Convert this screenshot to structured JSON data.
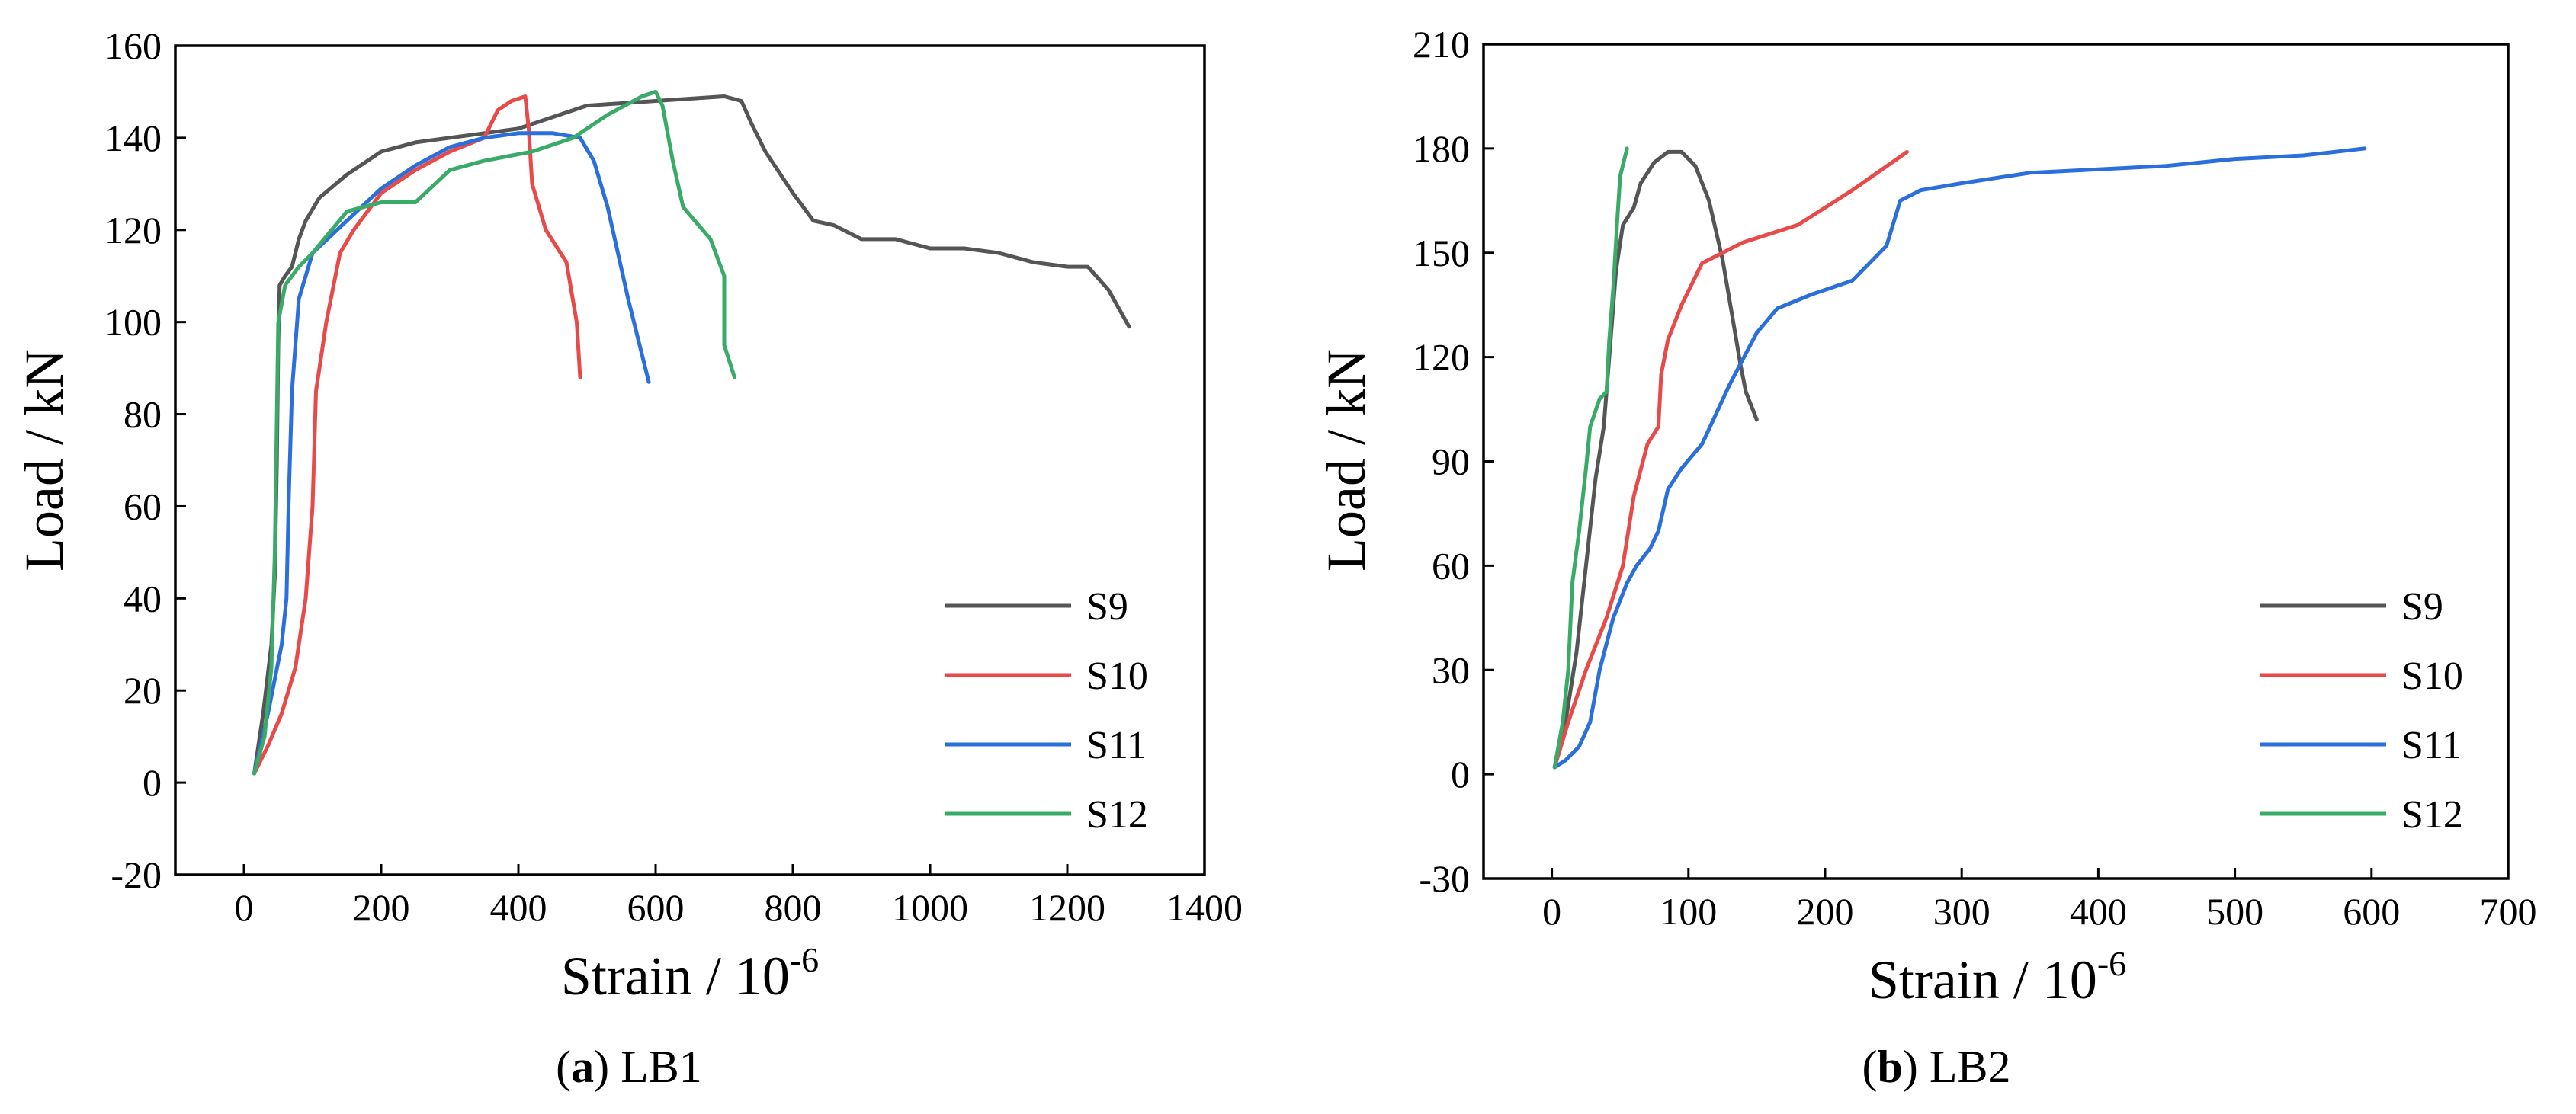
{
  "chart_data": [
    {
      "type": "line",
      "panel": "a",
      "caption_letter": "a",
      "caption_text": "LB1",
      "xlabel": "Strain / 10",
      "xlabel_sup": "-6",
      "ylabel": "Load / kN",
      "xlim": [
        -100,
        1400
      ],
      "ylim": [
        -20,
        160
      ],
      "xticks": [
        0,
        200,
        400,
        600,
        800,
        1000,
        1200,
        1400
      ],
      "yticks": [
        -20,
        0,
        20,
        40,
        60,
        80,
        100,
        120,
        140,
        160
      ],
      "legend_position": "bottom-right",
      "series": [
        {
          "name": "S9",
          "color": "#555555",
          "points": [
            [
              15,
              2
            ],
            [
              28,
              15
            ],
            [
              40,
              30
            ],
            [
              45,
              45
            ],
            [
              48,
              70
            ],
            [
              50,
              95
            ],
            [
              52,
              108
            ],
            [
              60,
              110
            ],
            [
              70,
              112
            ],
            [
              80,
              118
            ],
            [
              90,
              122
            ],
            [
              110,
              127
            ],
            [
              150,
              132
            ],
            [
              200,
              137
            ],
            [
              250,
              139
            ],
            [
              300,
              140
            ],
            [
              400,
              142
            ],
            [
              500,
              147
            ],
            [
              600,
              148
            ],
            [
              700,
              149
            ],
            [
              725,
              148
            ],
            [
              740,
              143
            ],
            [
              760,
              137
            ],
            [
              800,
              128
            ],
            [
              830,
              122
            ],
            [
              860,
              121
            ],
            [
              900,
              118
            ],
            [
              950,
              118
            ],
            [
              1000,
              116
            ],
            [
              1050,
              116
            ],
            [
              1100,
              115
            ],
            [
              1150,
              113
            ],
            [
              1200,
              112
            ],
            [
              1230,
              112
            ],
            [
              1260,
              107
            ],
            [
              1290,
              99
            ]
          ]
        },
        {
          "name": "S10",
          "color": "#e84a4a",
          "points": [
            [
              15,
              2
            ],
            [
              35,
              8
            ],
            [
              55,
              15
            ],
            [
              75,
              25
            ],
            [
              90,
              40
            ],
            [
              100,
              60
            ],
            [
              105,
              85
            ],
            [
              120,
              100
            ],
            [
              140,
              115
            ],
            [
              160,
              120
            ],
            [
              200,
              128
            ],
            [
              250,
              133
            ],
            [
              300,
              137
            ],
            [
              350,
              140
            ],
            [
              370,
              146
            ],
            [
              390,
              148
            ],
            [
              410,
              149
            ],
            [
              415,
              142
            ],
            [
              420,
              130
            ],
            [
              440,
              120
            ],
            [
              470,
              113
            ],
            [
              485,
              100
            ],
            [
              490,
              88
            ]
          ]
        },
        {
          "name": "S11",
          "color": "#2a6fdb",
          "points": [
            [
              15,
              2
            ],
            [
              35,
              15
            ],
            [
              55,
              30
            ],
            [
              62,
              40
            ],
            [
              65,
              60
            ],
            [
              70,
              85
            ],
            [
              80,
              105
            ],
            [
              100,
              115
            ],
            [
              150,
              122
            ],
            [
              200,
              129
            ],
            [
              250,
              134
            ],
            [
              300,
              138
            ],
            [
              350,
              140
            ],
            [
              400,
              141
            ],
            [
              450,
              141
            ],
            [
              490,
              140
            ],
            [
              510,
              135
            ],
            [
              530,
              125
            ],
            [
              560,
              105
            ],
            [
              590,
              87
            ]
          ]
        },
        {
          "name": "S12",
          "color": "#3aaa68",
          "points": [
            [
              15,
              2
            ],
            [
              30,
              10
            ],
            [
              40,
              25
            ],
            [
              45,
              50
            ],
            [
              48,
              80
            ],
            [
              50,
              100
            ],
            [
              60,
              108
            ],
            [
              80,
              112
            ],
            [
              100,
              115
            ],
            [
              150,
              124
            ],
            [
              200,
              126
            ],
            [
              250,
              126
            ],
            [
              300,
              133
            ],
            [
              350,
              135
            ],
            [
              420,
              137
            ],
            [
              480,
              140
            ],
            [
              530,
              145
            ],
            [
              580,
              149
            ],
            [
              600,
              150
            ],
            [
              610,
              147
            ],
            [
              625,
              135
            ],
            [
              640,
              125
            ],
            [
              680,
              118
            ],
            [
              700,
              110
            ],
            [
              700,
              95
            ],
            [
              715,
              88
            ]
          ]
        }
      ]
    },
    {
      "type": "line",
      "panel": "b",
      "caption_letter": "b",
      "caption_text": "LB2",
      "xlabel": "Strain / 10",
      "xlabel_sup": "-6",
      "ylabel": "Load / kN",
      "xlim": [
        -50,
        700
      ],
      "ylim": [
        -30,
        210
      ],
      "xticks": [
        0,
        100,
        200,
        300,
        400,
        500,
        600,
        700
      ],
      "yticks": [
        -30,
        0,
        30,
        60,
        90,
        120,
        150,
        180,
        210
      ],
      "legend_position": "bottom-right",
      "series": [
        {
          "name": "S9",
          "color": "#555555",
          "points": [
            [
              2,
              2
            ],
            [
              10,
              15
            ],
            [
              18,
              35
            ],
            [
              25,
              60
            ],
            [
              32,
              85
            ],
            [
              38,
              100
            ],
            [
              42,
              120
            ],
            [
              47,
              145
            ],
            [
              52,
              158
            ],
            [
              60,
              163
            ],
            [
              65,
              170
            ],
            [
              75,
              176
            ],
            [
              85,
              179
            ],
            [
              95,
              179
            ],
            [
              105,
              175
            ],
            [
              115,
              165
            ],
            [
              125,
              148
            ],
            [
              132,
              132
            ],
            [
              138,
              118
            ],
            [
              142,
              110
            ],
            [
              150,
              102
            ]
          ]
        },
        {
          "name": "S10",
          "color": "#e84a4a",
          "points": [
            [
              2,
              2
            ],
            [
              12,
              15
            ],
            [
              25,
              30
            ],
            [
              40,
              45
            ],
            [
              52,
              60
            ],
            [
              60,
              80
            ],
            [
              70,
              95
            ],
            [
              78,
              100
            ],
            [
              80,
              115
            ],
            [
              85,
              125
            ],
            [
              95,
              135
            ],
            [
              110,
              147
            ],
            [
              140,
              153
            ],
            [
              180,
              158
            ],
            [
              220,
              168
            ],
            [
              260,
              179
            ]
          ]
        },
        {
          "name": "S11",
          "color": "#2a6fdb",
          "points": [
            [
              2,
              2
            ],
            [
              10,
              4
            ],
            [
              20,
              8
            ],
            [
              28,
              15
            ],
            [
              35,
              30
            ],
            [
              45,
              45
            ],
            [
              55,
              55
            ],
            [
              62,
              60
            ],
            [
              72,
              65
            ],
            [
              78,
              70
            ],
            [
              85,
              82
            ],
            [
              95,
              88
            ],
            [
              110,
              95
            ],
            [
              130,
              112
            ],
            [
              150,
              127
            ],
            [
              165,
              134
            ],
            [
              190,
              138
            ],
            [
              220,
              142
            ],
            [
              245,
              152
            ],
            [
              255,
              165
            ],
            [
              270,
              168
            ],
            [
              300,
              170
            ],
            [
              350,
              173
            ],
            [
              400,
              174
            ],
            [
              450,
              175
            ],
            [
              500,
              177
            ],
            [
              550,
              178
            ],
            [
              595,
              180
            ]
          ]
        },
        {
          "name": "S12",
          "color": "#3aaa68",
          "points": [
            [
              2,
              2
            ],
            [
              8,
              15
            ],
            [
              12,
              30
            ],
            [
              15,
              55
            ],
            [
              20,
              70
            ],
            [
              25,
              88
            ],
            [
              28,
              100
            ],
            [
              35,
              108
            ],
            [
              40,
              110
            ],
            [
              42,
              125
            ],
            [
              45,
              140
            ],
            [
              48,
              160
            ],
            [
              50,
              172
            ],
            [
              55,
              180
            ]
          ]
        }
      ]
    }
  ]
}
